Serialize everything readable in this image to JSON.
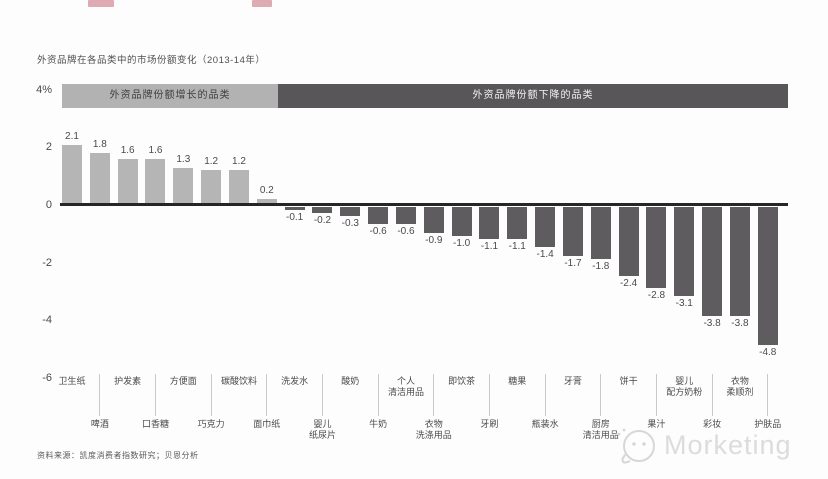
{
  "page": {
    "title": "外资品牌在各品类中的市场份额变化（2013-14年）",
    "source": "资料来源：凯度消费者指数研究；贝恩分析",
    "watermark": "Morketing"
  },
  "bands": {
    "increase": "外资品牌份额增长的品类",
    "decrease": "外资品牌份额下降的品类"
  },
  "axis": {
    "ticks": [
      {
        "label": "4%",
        "value": 4
      },
      {
        "label": "2",
        "value": 2
      },
      {
        "label": "0",
        "value": 0
      },
      {
        "label": "-2",
        "value": -2
      },
      {
        "label": "-4",
        "value": -4
      },
      {
        "label": "-6",
        "value": -6
      }
    ]
  },
  "colors": {
    "positive_bar": "#b5b5b5",
    "negative_bar": "#5f5c60",
    "band_light": "#b2b2b2",
    "band_dark": "#59565a",
    "zero_line": "#262626",
    "cropped_red": "#c05a68",
    "watermark_gray": "#dddbdb"
  },
  "chart_data": {
    "type": "bar",
    "title": "外资品牌在各品类中的市场份额变化（2013-14年）",
    "unit": "%",
    "ylim": [
      -6,
      4
    ],
    "grid": false,
    "legend_position": "top",
    "groups": [
      {
        "label": "外资品牌份额增长的品类",
        "count": 8,
        "color": "#b2b2b2"
      },
      {
        "label": "外资品牌份额下降的品类",
        "count": 18,
        "color": "#59565a"
      }
    ],
    "categories": [
      "卫生纸",
      "啤酒",
      "护发素",
      "口香糖",
      "方便面",
      "巧克力",
      "碳酸饮料",
      "面巾纸",
      "洗发水",
      "婴儿\n纸尿片",
      "酸奶",
      "牛奶",
      "个人\n清洁用品",
      "衣物\n洗涤用品",
      "即饮茶",
      "牙刷",
      "糖果",
      "瓶装水",
      "牙膏",
      "厨房\n清洁用品",
      "饼干",
      "果汁",
      "婴儿\n配方奶粉",
      "彩妆",
      "衣物\n柔顺剂",
      "护肤品"
    ],
    "values": [
      2.1,
      1.8,
      1.6,
      1.6,
      1.3,
      1.2,
      1.2,
      0.2,
      -0.1,
      -0.2,
      -0.3,
      -0.6,
      -0.6,
      -0.9,
      -1.0,
      -1.1,
      -1.1,
      -1.4,
      -1.7,
      -1.8,
      -2.4,
      -2.8,
      -3.1,
      -3.8,
      -3.8,
      -4.8
    ]
  }
}
